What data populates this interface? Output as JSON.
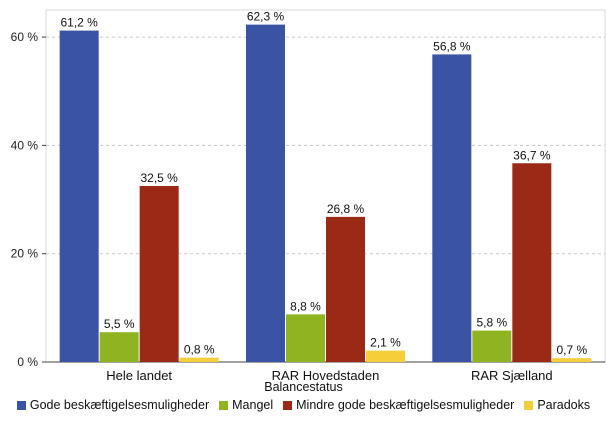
{
  "chart_data": {
    "type": "bar",
    "categories": [
      "Hele landet",
      "RAR Hovedstaden",
      "RAR Sjælland"
    ],
    "series": [
      {
        "name": "Gode beskæftigelsesmuligheder",
        "color": "#3a53a4",
        "values": [
          61.2,
          62.3,
          56.8
        ],
        "labels": [
          "61,2 %",
          "62,3 %",
          "56,8 %"
        ]
      },
      {
        "name": "Mangel",
        "color": "#8fb321",
        "values": [
          5.5,
          8.8,
          5.8
        ],
        "labels": [
          "5,5 %",
          "8,8 %",
          "5,8 %"
        ]
      },
      {
        "name": "Mindre gode beskæftigelsesmuligheder",
        "color": "#9a2916",
        "values": [
          32.5,
          26.8,
          36.7
        ],
        "labels": [
          "32,5 %",
          "26,8 %",
          "36,7 %"
        ]
      },
      {
        "name": "Paradoks",
        "color": "#f5cf3a",
        "values": [
          0.8,
          2.1,
          0.7
        ],
        "labels": [
          "0,8 %",
          "2,1 %",
          "0,7 %"
        ]
      }
    ],
    "yticks": [
      0,
      20,
      40,
      60
    ],
    "ytick_labels": [
      "0 %",
      "20 %",
      "40 %",
      "60 %"
    ],
    "ylim": [
      0,
      65
    ],
    "grid": true,
    "legend_title": "Balancestatus",
    "legend_position": "bottom"
  }
}
